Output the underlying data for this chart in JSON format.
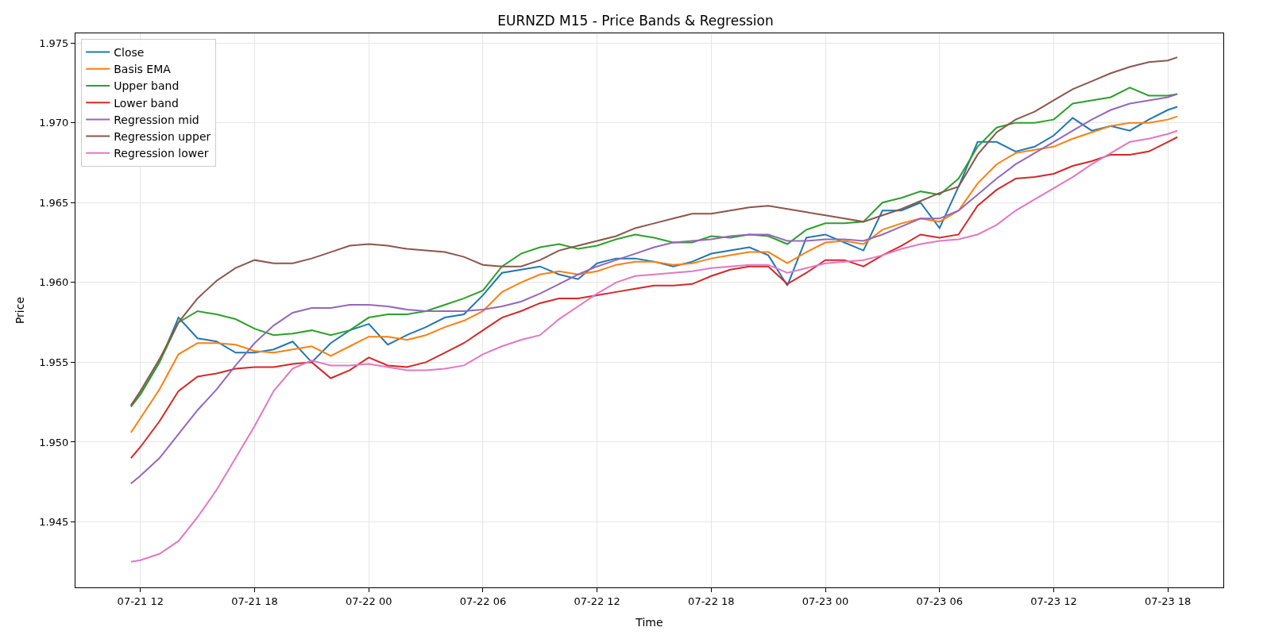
{
  "chart_data": {
    "type": "line",
    "title": "EURNZD M15 - Price Bands & Regression",
    "xlabel": "Time",
    "ylabel": "Price",
    "x": [
      "--07-21T11:30",
      "--07-21T12:00",
      "--07-21T13:00",
      "--07-21T14:00",
      "--07-21T15:00",
      "--07-21T16:00",
      "--07-21T17:00",
      "--07-21T18:00",
      "--07-21T19:00",
      "--07-21T20:00",
      "--07-21T21:00",
      "--07-21T22:00",
      "--07-21T23:00",
      "--07-22T00:00",
      "--07-22T01:00",
      "--07-22T02:00",
      "--07-22T03:00",
      "--07-22T04:00",
      "--07-22T05:00",
      "--07-22T06:00",
      "--07-22T07:00",
      "--07-22T08:00",
      "--07-22T09:00",
      "--07-22T10:00",
      "--07-22T11:00",
      "--07-22T12:00",
      "--07-22T13:00",
      "--07-22T14:00",
      "--07-22T15:00",
      "--07-22T16:00",
      "--07-22T17:00",
      "--07-22T18:00",
      "--07-22T19:00",
      "--07-22T20:00",
      "--07-22T21:00",
      "--07-22T22:00",
      "--07-22T23:00",
      "--07-23T00:00",
      "--07-23T01:00",
      "--07-23T02:00",
      "--07-23T03:00",
      "--07-23T04:00",
      "--07-23T05:00",
      "--07-23T06:00",
      "--07-23T07:00",
      "--07-23T08:00",
      "--07-23T09:00",
      "--07-23T10:00",
      "--07-23T11:00",
      "--07-23T12:00",
      "--07-23T13:00",
      "--07-23T14:00",
      "--07-23T15:00",
      "--07-23T16:00",
      "--07-23T17:00",
      "--07-23T18:00",
      "--07-23T18:30"
    ],
    "series": [
      {
        "name": "Close",
        "color": "#1f77b4",
        "values": [
          1.9523,
          1.953,
          1.955,
          1.9578,
          1.9565,
          1.9563,
          1.9556,
          1.9556,
          1.9558,
          1.9563,
          1.955,
          1.9562,
          1.957,
          1.9574,
          1.9561,
          1.9567,
          1.9572,
          1.9578,
          1.958,
          1.9592,
          1.9606,
          1.9608,
          1.961,
          1.9605,
          1.9602,
          1.9612,
          1.9615,
          1.9615,
          1.9613,
          1.961,
          1.9613,
          1.9618,
          1.962,
          1.9622,
          1.9617,
          1.9598,
          1.9628,
          1.963,
          1.9625,
          1.962,
          1.9645,
          1.9645,
          1.965,
          1.9634,
          1.966,
          1.9688,
          1.9688,
          1.9682,
          1.9685,
          1.9692,
          1.9703,
          1.9695,
          1.9698,
          1.9695,
          1.9702,
          1.9708,
          1.971
        ]
      },
      {
        "name": "Basis EMA",
        "color": "#ff7f0e",
        "values": [
          1.9506,
          1.9515,
          1.9533,
          1.9555,
          1.9562,
          1.9562,
          1.9561,
          1.9557,
          1.9556,
          1.9558,
          1.956,
          1.9554,
          1.956,
          1.9566,
          1.9566,
          1.9564,
          1.9567,
          1.9572,
          1.9576,
          1.9582,
          1.9594,
          1.96,
          1.9605,
          1.9607,
          1.9605,
          1.9607,
          1.9611,
          1.9613,
          1.9613,
          1.9611,
          1.9612,
          1.9615,
          1.9617,
          1.9619,
          1.9619,
          1.9612,
          1.9619,
          1.9625,
          1.9626,
          1.9624,
          1.9633,
          1.9637,
          1.964,
          1.9638,
          1.9645,
          1.9662,
          1.9674,
          1.9681,
          1.9683,
          1.9685,
          1.969,
          1.9694,
          1.9698,
          1.97,
          1.97,
          1.9702,
          1.9704
        ]
      },
      {
        "name": "Upper band",
        "color": "#2ca02c",
        "values": [
          1.9522,
          1.953,
          1.955,
          1.9575,
          1.9582,
          1.958,
          1.9577,
          1.9571,
          1.9567,
          1.9568,
          1.957,
          1.9567,
          1.957,
          1.9578,
          1.958,
          1.958,
          1.9582,
          1.9586,
          1.959,
          1.9595,
          1.961,
          1.9618,
          1.9622,
          1.9624,
          1.9621,
          1.9623,
          1.9627,
          1.963,
          1.9628,
          1.9625,
          1.9625,
          1.9629,
          1.9628,
          1.963,
          1.9629,
          1.9624,
          1.9633,
          1.9637,
          1.9637,
          1.9638,
          1.965,
          1.9653,
          1.9657,
          1.9655,
          1.9665,
          1.9685,
          1.9697,
          1.97,
          1.97,
          1.9702,
          1.9712,
          1.9714,
          1.9716,
          1.9722,
          1.9717,
          1.9717,
          1.9718
        ]
      },
      {
        "name": "Lower band",
        "color": "#d62728",
        "values": [
          1.949,
          1.9497,
          1.9513,
          1.9532,
          1.9541,
          1.9543,
          1.9546,
          1.9547,
          1.9547,
          1.9549,
          1.955,
          1.954,
          1.9545,
          1.9553,
          1.9548,
          1.9547,
          1.955,
          1.9556,
          1.9562,
          1.957,
          1.9578,
          1.9582,
          1.9587,
          1.959,
          1.959,
          1.9592,
          1.9594,
          1.9596,
          1.9598,
          1.9598,
          1.9599,
          1.9604,
          1.9608,
          1.961,
          1.961,
          1.9599,
          1.9606,
          1.9614,
          1.9614,
          1.961,
          1.9617,
          1.9623,
          1.963,
          1.9628,
          1.963,
          1.9648,
          1.9658,
          1.9665,
          1.9666,
          1.9668,
          1.9673,
          1.9676,
          1.968,
          1.968,
          1.9682,
          1.9688,
          1.9691
        ]
      },
      {
        "name": "Regression mid",
        "color": "#9467bd",
        "values": [
          1.9474,
          1.9479,
          1.949,
          1.9505,
          1.952,
          1.9533,
          1.9548,
          1.9562,
          1.9573,
          1.9581,
          1.9584,
          1.9584,
          1.9586,
          1.9586,
          1.9585,
          1.9583,
          1.9582,
          1.9582,
          1.9582,
          1.9583,
          1.9585,
          1.9588,
          1.9593,
          1.9599,
          1.9605,
          1.961,
          1.9614,
          1.9618,
          1.9622,
          1.9625,
          1.9626,
          1.9627,
          1.9629,
          1.963,
          1.963,
          1.9626,
          1.9626,
          1.9627,
          1.9627,
          1.9626,
          1.963,
          1.9635,
          1.964,
          1.964,
          1.9645,
          1.9655,
          1.9665,
          1.9674,
          1.9681,
          1.9688,
          1.9695,
          1.9702,
          1.9708,
          1.9712,
          1.9714,
          1.9716,
          1.9718
        ]
      },
      {
        "name": "Regression upper",
        "color": "#8c564b",
        "values": [
          1.9523,
          1.9532,
          1.9552,
          1.9575,
          1.959,
          1.9601,
          1.9609,
          1.9614,
          1.9612,
          1.9612,
          1.9615,
          1.9619,
          1.9623,
          1.9624,
          1.9623,
          1.9621,
          1.962,
          1.9619,
          1.9616,
          1.9611,
          1.961,
          1.961,
          1.9614,
          1.962,
          1.9623,
          1.9626,
          1.9629,
          1.9634,
          1.9637,
          1.964,
          1.9643,
          1.9643,
          1.9645,
          1.9647,
          1.9648,
          1.9646,
          1.9644,
          1.9642,
          1.964,
          1.9638,
          1.9642,
          1.9646,
          1.9651,
          1.9656,
          1.966,
          1.968,
          1.9694,
          1.9702,
          1.9707,
          1.9714,
          1.9721,
          1.9726,
          1.9731,
          1.9735,
          1.9738,
          1.9739,
          1.9741
        ]
      },
      {
        "name": "Regression lower",
        "color": "#e377c2",
        "values": [
          1.9425,
          1.9426,
          1.943,
          1.9438,
          1.9453,
          1.947,
          1.949,
          1.951,
          1.9532,
          1.9546,
          1.9551,
          1.9548,
          1.9548,
          1.9549,
          1.9547,
          1.9545,
          1.9545,
          1.9546,
          1.9548,
          1.9555,
          1.956,
          1.9564,
          1.9567,
          1.9577,
          1.9585,
          1.9593,
          1.96,
          1.9604,
          1.9605,
          1.9606,
          1.9607,
          1.9609,
          1.961,
          1.9611,
          1.9611,
          1.9606,
          1.9609,
          1.9612,
          1.9613,
          1.9614,
          1.9617,
          1.9621,
          1.9624,
          1.9626,
          1.9627,
          1.963,
          1.9636,
          1.9645,
          1.9652,
          1.9659,
          1.9666,
          1.9674,
          1.9681,
          1.9688,
          1.969,
          1.9693,
          1.9695
        ]
      }
    ],
    "xlim": [
      "--07-21T08:35",
      "--07-23T20:55"
    ],
    "xticks": [
      {
        "value": "--07-21T12:00",
        "label": "07-21 12"
      },
      {
        "value": "--07-21T18:00",
        "label": "07-21 18"
      },
      {
        "value": "--07-22T00:00",
        "label": "07-22 00"
      },
      {
        "value": "--07-22T06:00",
        "label": "07-22 06"
      },
      {
        "value": "--07-22T12:00",
        "label": "07-22 12"
      },
      {
        "value": "--07-22T18:00",
        "label": "07-22 18"
      },
      {
        "value": "--07-23T00:00",
        "label": "07-23 00"
      },
      {
        "value": "--07-23T06:00",
        "label": "07-23 06"
      },
      {
        "value": "--07-23T12:00",
        "label": "07-23 12"
      },
      {
        "value": "--07-23T18:00",
        "label": "07-23 18"
      }
    ],
    "ylim": [
      1.9409,
      1.9756
    ],
    "yticks": [
      {
        "value": 1.945,
        "label": "1.945"
      },
      {
        "value": 1.95,
        "label": "1.950"
      },
      {
        "value": 1.955,
        "label": "1.955"
      },
      {
        "value": 1.96,
        "label": "1.960"
      },
      {
        "value": 1.965,
        "label": "1.965"
      },
      {
        "value": 1.97,
        "label": "1.970"
      },
      {
        "value": 1.975,
        "label": "1.975"
      }
    ],
    "grid": true,
    "legend": "top left"
  }
}
